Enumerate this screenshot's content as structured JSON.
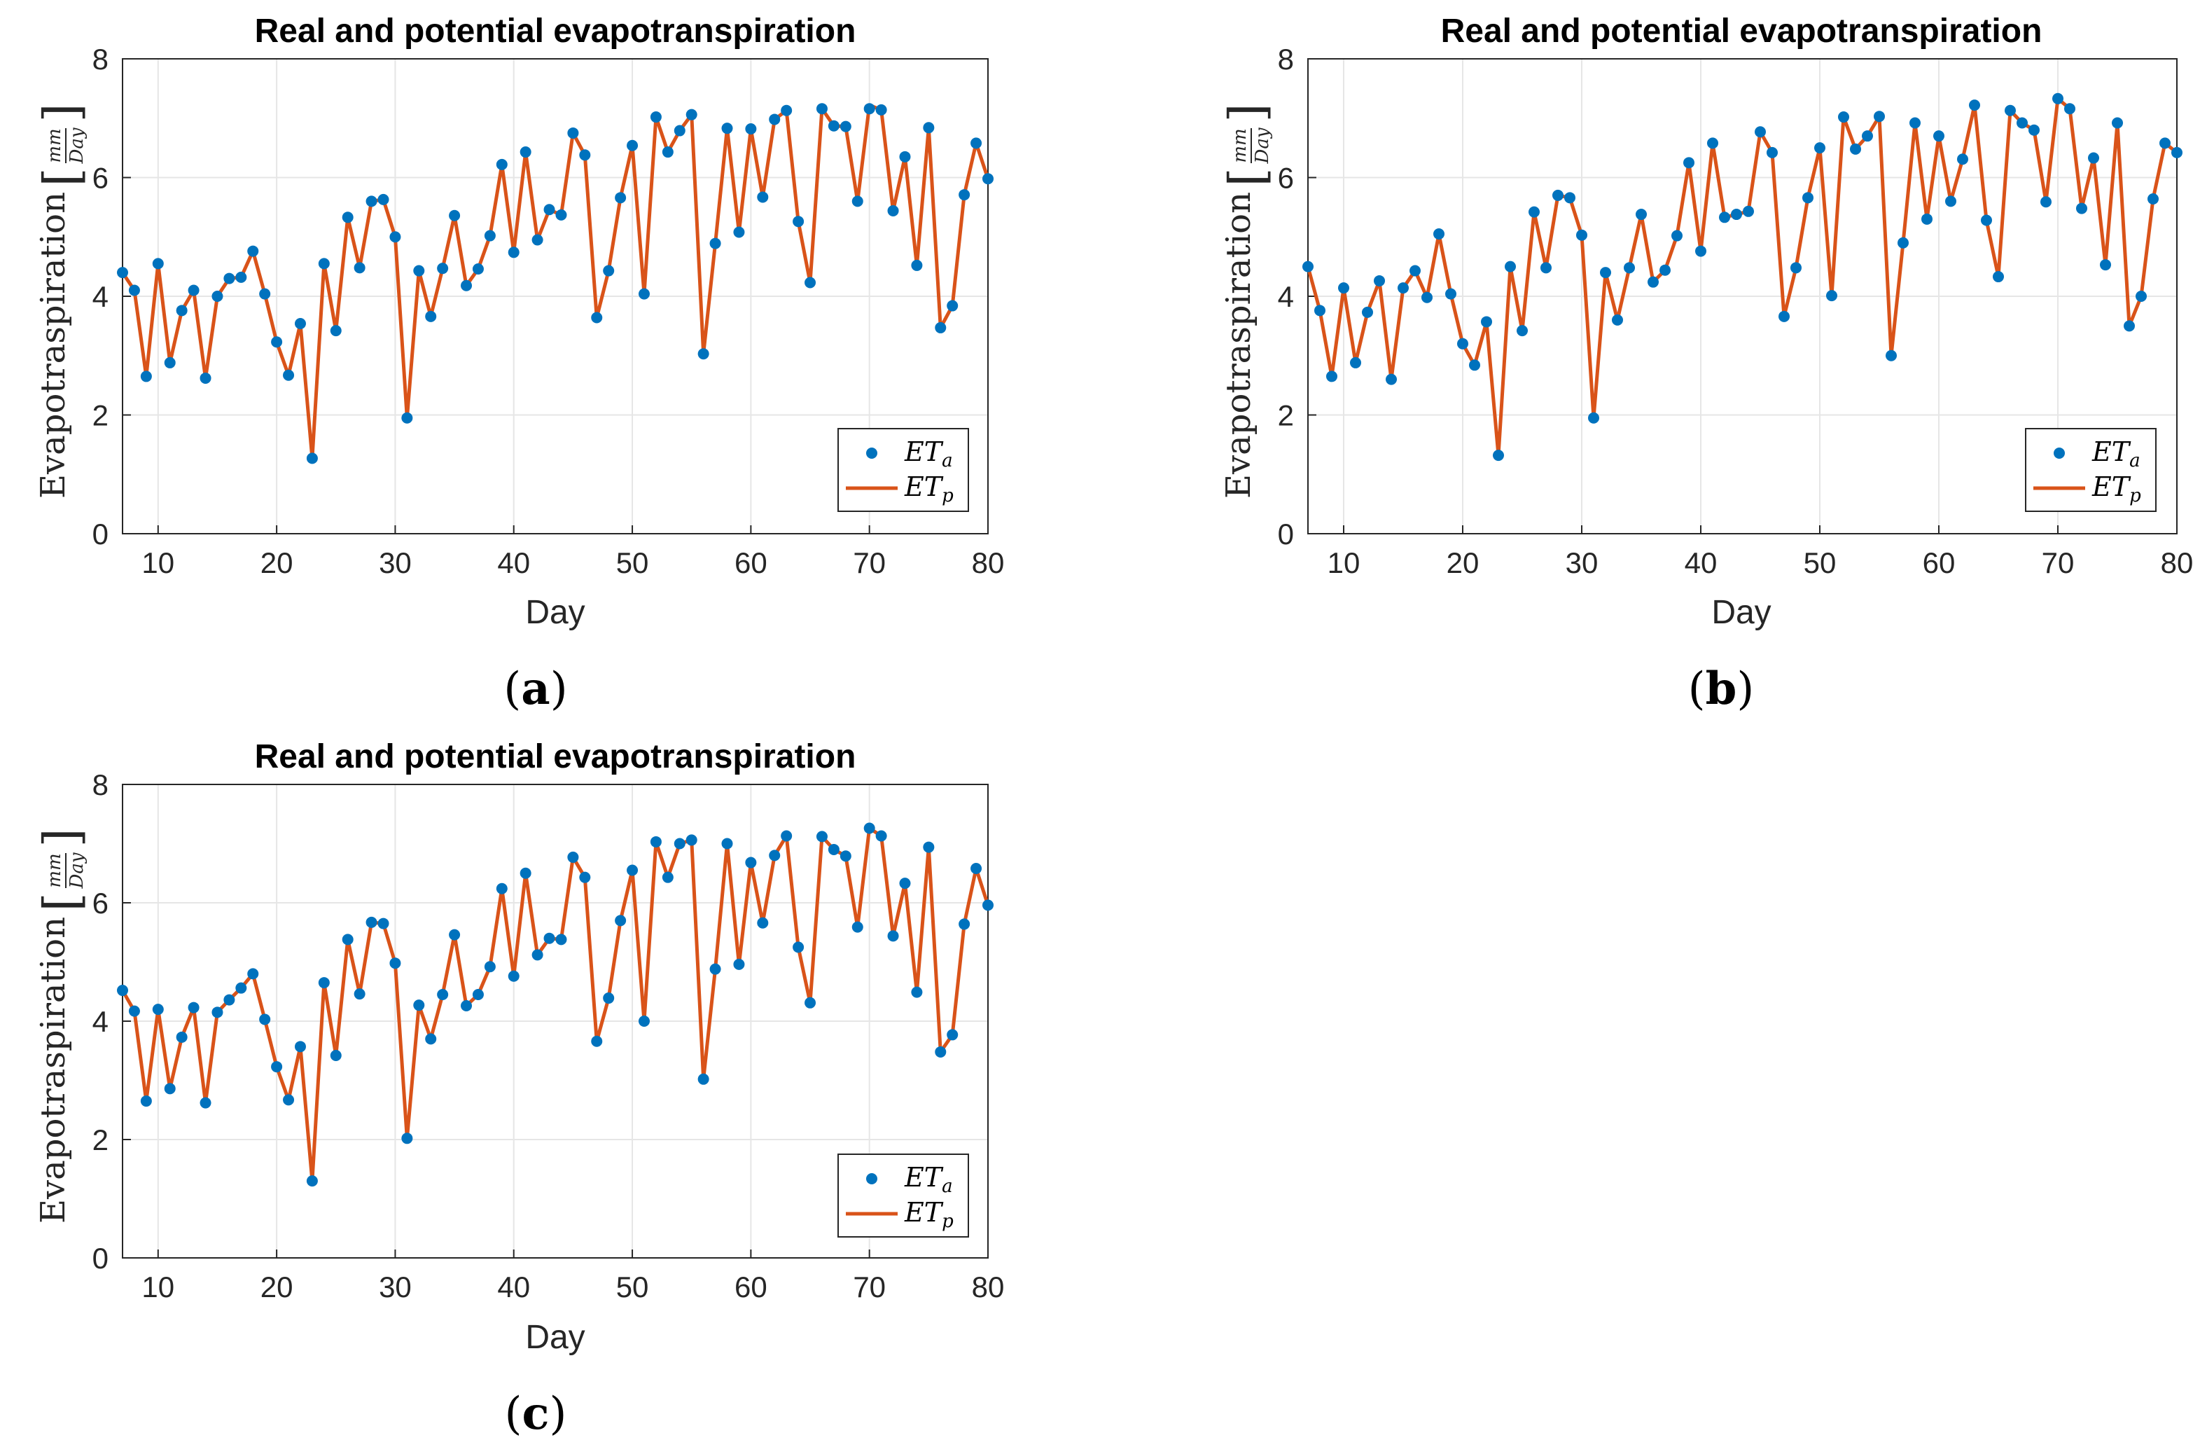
{
  "colors": {
    "eta": "#0072BD",
    "etp": "#D95319",
    "grid": "#e6e6e6",
    "axis": "#262626"
  },
  "panels": [
    {
      "caption_letter": "a",
      "caption_open": "(",
      "caption_close": ")",
      "legend": {
        "eta_main": "ET",
        "eta_sub": "a",
        "etp_main": "ET",
        "etp_sub": "p"
      },
      "y_unit_num": "mm",
      "y_unit_den": "Day",
      "chart_data": {
        "type": "line",
        "title": "Real and potential evapotranspiration",
        "xlabel": "Day",
        "ylabel": "Evapotraspiration",
        "xlim": [
          7,
          80
        ],
        "ylim": [
          0,
          8
        ],
        "xticks": [
          10,
          20,
          30,
          40,
          50,
          60,
          70,
          80
        ],
        "yticks": [
          0,
          2,
          4,
          6,
          8
        ],
        "grid": true,
        "legend_position": "bottom-right",
        "x": [
          7,
          8,
          9,
          10,
          11,
          12,
          13,
          14,
          15,
          16,
          17,
          18,
          19,
          20,
          21,
          22,
          23,
          24,
          25,
          26,
          27,
          28,
          29,
          30,
          31,
          32,
          33,
          34,
          35,
          36,
          37,
          38,
          39,
          40,
          41,
          42,
          43,
          44,
          45,
          46,
          47,
          48,
          49,
          50,
          51,
          52,
          53,
          54,
          55,
          56,
          57,
          58,
          59,
          60,
          61,
          62,
          63,
          64,
          65,
          66,
          67,
          68,
          69,
          70,
          71,
          72,
          73,
          74,
          75,
          76,
          77,
          78,
          79,
          80
        ],
        "series": [
          {
            "name": "ET_a",
            "style": "markers",
            "values": [
              4.4,
              4.1,
              2.65,
              4.55,
              2.88,
              3.76,
              4.1,
              2.62,
              4.0,
              4.3,
              4.32,
              4.76,
              4.04,
              3.23,
              2.67,
              3.54,
              1.27,
              4.55,
              3.42,
              5.33,
              4.48,
              5.6,
              5.63,
              5.0,
              1.95,
              4.43,
              3.66,
              4.47,
              5.36,
              4.18,
              4.46,
              5.02,
              6.22,
              4.74,
              6.43,
              4.95,
              5.46,
              5.37,
              6.75,
              6.38,
              3.64,
              4.43,
              5.66,
              6.54,
              4.04,
              7.02,
              6.43,
              6.79,
              7.06,
              3.03,
              4.89,
              6.83,
              5.08,
              6.82,
              5.67,
              6.98,
              7.13,
              5.26,
              4.23,
              7.16,
              6.87,
              6.86,
              5.6,
              7.16,
              7.14,
              5.44,
              6.35,
              4.52,
              6.84,
              3.47,
              3.84,
              5.71,
              6.58,
              5.98
            ]
          },
          {
            "name": "ET_p",
            "style": "line",
            "values": [
              4.4,
              4.1,
              2.65,
              4.55,
              2.88,
              3.76,
              4.1,
              2.62,
              4.0,
              4.3,
              4.32,
              4.76,
              4.04,
              3.23,
              2.67,
              3.54,
              1.27,
              4.55,
              3.42,
              5.33,
              4.48,
              5.6,
              5.63,
              5.0,
              1.95,
              4.43,
              3.66,
              4.47,
              5.36,
              4.18,
              4.46,
              5.02,
              6.22,
              4.74,
              6.43,
              4.95,
              5.46,
              5.37,
              6.75,
              6.38,
              3.64,
              4.43,
              5.66,
              6.54,
              4.04,
              7.02,
              6.43,
              6.79,
              7.06,
              3.03,
              4.89,
              6.83,
              5.08,
              6.82,
              5.67,
              6.98,
              7.13,
              5.26,
              4.23,
              7.16,
              6.87,
              6.86,
              5.6,
              7.22,
              7.14,
              5.44,
              6.35,
              4.52,
              6.84,
              3.47,
              3.84,
              5.71,
              6.58,
              5.98
            ]
          }
        ]
      }
    },
    {
      "caption_letter": "b",
      "caption_open": "(",
      "caption_close": ")",
      "legend": {
        "eta_main": "ET",
        "eta_sub": "a",
        "etp_main": "ET",
        "etp_sub": "p"
      },
      "y_unit_num": "mm",
      "y_unit_den": "Day",
      "chart_data": {
        "type": "line",
        "title": "Real and potential evapotranspiration",
        "xlabel": "Day",
        "ylabel": "Evapotraspiration",
        "xlim": [
          7,
          80
        ],
        "ylim": [
          0,
          8
        ],
        "xticks": [
          10,
          20,
          30,
          40,
          50,
          60,
          70,
          80
        ],
        "yticks": [
          0,
          2,
          4,
          6,
          8
        ],
        "grid": true,
        "legend_position": "bottom-right",
        "x": [
          7,
          8,
          9,
          10,
          11,
          12,
          13,
          14,
          15,
          16,
          17,
          18,
          19,
          20,
          21,
          22,
          23,
          24,
          25,
          26,
          27,
          28,
          29,
          30,
          31,
          32,
          33,
          34,
          35,
          36,
          37,
          38,
          39,
          40,
          41,
          42,
          43,
          44,
          45,
          46,
          47,
          48,
          49,
          50,
          51,
          52,
          53,
          54,
          55,
          56,
          57,
          58,
          59,
          60,
          61,
          62,
          63,
          64,
          65,
          66,
          67,
          68,
          69,
          70,
          71,
          72,
          73,
          74,
          75,
          76,
          77,
          78,
          79,
          80
        ],
        "series": [
          {
            "name": "ET_a",
            "style": "markers",
            "values": [
              4.5,
              3.76,
              2.65,
              4.14,
              2.88,
              3.73,
              4.26,
              2.6,
              4.14,
              4.43,
              3.98,
              5.05,
              4.04,
              3.2,
              2.84,
              3.57,
              1.32,
              4.5,
              3.42,
              5.42,
              4.48,
              5.7,
              5.66,
              5.03,
              1.95,
              4.4,
              3.6,
              4.48,
              5.38,
              4.24,
              4.44,
              5.02,
              6.25,
              4.76,
              6.58,
              5.33,
              5.38,
              5.43,
              6.77,
              6.42,
              3.66,
              4.48,
              5.66,
              6.5,
              4.01,
              7.02,
              6.48,
              6.7,
              7.03,
              3.0,
              4.9,
              6.92,
              5.3,
              6.7,
              5.6,
              6.31,
              7.22,
              5.28,
              4.33,
              7.13,
              6.92,
              6.8,
              5.59,
              7.33,
              7.16,
              5.48,
              6.33,
              4.53,
              6.92,
              3.5,
              4.0,
              5.64,
              6.58,
              6.42
            ]
          },
          {
            "name": "ET_p",
            "style": "line",
            "values": [
              4.5,
              3.76,
              2.65,
              4.14,
              2.88,
              3.73,
              4.26,
              2.6,
              4.14,
              4.43,
              3.98,
              5.05,
              4.04,
              3.2,
              2.84,
              3.57,
              1.32,
              4.5,
              3.42,
              5.42,
              4.48,
              5.7,
              5.66,
              5.03,
              1.95,
              4.4,
              3.6,
              4.48,
              5.38,
              4.24,
              4.44,
              5.02,
              6.25,
              4.76,
              6.58,
              5.33,
              5.38,
              5.43,
              6.77,
              6.42,
              3.66,
              4.48,
              5.66,
              6.5,
              4.01,
              7.02,
              6.48,
              6.7,
              7.03,
              3.0,
              4.9,
              6.92,
              5.3,
              6.7,
              5.6,
              6.31,
              7.22,
              5.28,
              4.33,
              7.13,
              6.92,
              6.8,
              5.59,
              7.33,
              7.16,
              5.48,
              6.33,
              4.53,
              6.92,
              3.5,
              4.0,
              5.64,
              6.58,
              6.42
            ]
          }
        ]
      }
    },
    {
      "caption_letter": "c",
      "caption_open": "(",
      "caption_close": ")",
      "legend": {
        "eta_main": "ET",
        "eta_sub": "a",
        "etp_main": "ET",
        "etp_sub": "p"
      },
      "y_unit_num": "mm",
      "y_unit_den": "Day",
      "chart_data": {
        "type": "line",
        "title": "Real and potential evapotranspiration",
        "xlabel": "Day",
        "ylabel": "Evapotraspiration",
        "xlim": [
          7,
          80
        ],
        "ylim": [
          0,
          8
        ],
        "xticks": [
          10,
          20,
          30,
          40,
          50,
          60,
          70,
          80
        ],
        "yticks": [
          0,
          2,
          4,
          6,
          8
        ],
        "grid": true,
        "legend_position": "bottom-right",
        "x": [
          7,
          8,
          9,
          10,
          11,
          12,
          13,
          14,
          15,
          16,
          17,
          18,
          19,
          20,
          21,
          22,
          23,
          24,
          25,
          26,
          27,
          28,
          29,
          30,
          31,
          32,
          33,
          34,
          35,
          36,
          37,
          38,
          39,
          40,
          41,
          42,
          43,
          44,
          45,
          46,
          47,
          48,
          49,
          50,
          51,
          52,
          53,
          54,
          55,
          56,
          57,
          58,
          59,
          60,
          61,
          62,
          63,
          64,
          65,
          66,
          67,
          68,
          69,
          70,
          71,
          72,
          73,
          74,
          75,
          76,
          77,
          78,
          79,
          80
        ],
        "series": [
          {
            "name": "ET_a",
            "style": "markers",
            "values": [
              4.52,
              4.17,
              2.65,
              4.2,
              2.86,
              3.73,
              4.23,
              2.62,
              4.15,
              4.36,
              4.56,
              4.8,
              4.03,
              3.23,
              2.67,
              3.57,
              1.3,
              4.65,
              3.42,
              5.38,
              4.46,
              5.67,
              5.65,
              4.98,
              2.02,
              4.27,
              3.7,
              4.45,
              5.46,
              4.26,
              4.45,
              4.92,
              6.24,
              4.76,
              6.5,
              5.12,
              5.4,
              5.38,
              6.77,
              6.43,
              3.66,
              4.39,
              5.7,
              6.55,
              4.0,
              7.03,
              6.43,
              7.0,
              7.06,
              3.02,
              4.88,
              7.0,
              4.96,
              6.68,
              5.66,
              6.8,
              7.13,
              5.25,
              4.31,
              7.12,
              6.9,
              6.79,
              5.59,
              7.26,
              7.13,
              5.44,
              6.33,
              4.49,
              6.94,
              3.48,
              3.77,
              5.64,
              6.58,
              5.96
            ]
          },
          {
            "name": "ET_p",
            "style": "line",
            "values": [
              4.52,
              4.17,
              2.65,
              4.2,
              2.86,
              3.73,
              4.23,
              2.62,
              4.15,
              4.36,
              4.56,
              4.8,
              4.03,
              3.23,
              2.67,
              3.57,
              1.3,
              4.65,
              3.42,
              5.38,
              4.46,
              5.67,
              5.65,
              4.98,
              2.02,
              4.27,
              3.7,
              4.45,
              5.46,
              4.26,
              4.45,
              4.92,
              6.24,
              4.76,
              6.5,
              5.12,
              5.4,
              5.38,
              6.77,
              6.43,
              3.66,
              4.39,
              5.7,
              6.55,
              4.0,
              7.03,
              6.43,
              7.0,
              7.06,
              3.02,
              4.88,
              7.0,
              4.96,
              6.68,
              5.66,
              6.8,
              7.13,
              5.25,
              4.31,
              7.12,
              6.9,
              6.79,
              5.59,
              7.26,
              7.13,
              5.44,
              6.33,
              4.49,
              6.94,
              3.48,
              3.77,
              5.64,
              6.58,
              5.96
            ]
          }
        ]
      }
    }
  ]
}
